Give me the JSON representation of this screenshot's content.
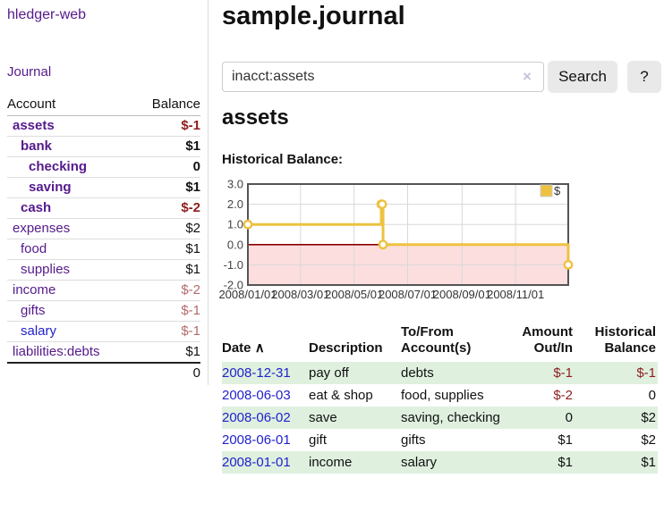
{
  "colors": {
    "visited_link_purple": "#551a8b",
    "unvisited_link_blue": "#2222cc",
    "negative_dark_red": "#8f1d1d",
    "negative_light_red": "#b36a6a",
    "row_shade_green": "#dff0df",
    "series_gold": "#edc240",
    "zero_line_red": "#8b0000",
    "negative_region_pink": "#fcdede",
    "grid_gray": "#d8d8d8",
    "plot_border_gray": "#545454",
    "button_gray": "#e9e9e9"
  },
  "sidebar": {
    "app_title": "hledger-web",
    "journal_link": "Journal",
    "accounts_table": {
      "headers": {
        "account": "Account",
        "balance": "Balance"
      },
      "rows": [
        {
          "name": "assets",
          "depth": 0,
          "bold": true,
          "balance": "$-1",
          "balance_style": "neg"
        },
        {
          "name": "bank",
          "depth": 1,
          "bold": true,
          "balance": "$1",
          "balance_style": "pos"
        },
        {
          "name": "checking",
          "depth": 2,
          "bold": true,
          "balance": "0",
          "balance_style": "pos"
        },
        {
          "name": "saving",
          "depth": 2,
          "bold": true,
          "balance": "$1",
          "balance_style": "pos"
        },
        {
          "name": "cash",
          "depth": 1,
          "bold": true,
          "balance": "$-2",
          "balance_style": "neg"
        },
        {
          "name": "expenses",
          "depth": 0,
          "bold": false,
          "balance": "$2",
          "balance_style": "pos"
        },
        {
          "name": "food",
          "depth": 1,
          "bold": false,
          "balance": "$1",
          "balance_style": "pos"
        },
        {
          "name": "supplies",
          "depth": 1,
          "bold": false,
          "balance": "$1",
          "balance_style": "pos"
        },
        {
          "name": "income",
          "depth": 0,
          "bold": false,
          "balance": "$-2",
          "balance_style": "neg-light"
        },
        {
          "name": "gifts",
          "depth": 1,
          "bold": false,
          "balance": "$-1",
          "balance_style": "neg-light"
        },
        {
          "name": "salary",
          "depth": 1,
          "bold": false,
          "balance": "$-1",
          "balance_style": "neg-light",
          "link_unvisited": true
        },
        {
          "name": "liabilities:debts",
          "depth": 0,
          "bold": false,
          "balance": "$1",
          "balance_style": "pos"
        }
      ],
      "total": "0"
    }
  },
  "main": {
    "title": "sample.journal",
    "search": {
      "value": "inacct:assets",
      "clear_icon": "×",
      "button_label": "Search",
      "help_label": "?"
    },
    "account_heading": "assets",
    "section_label": "Historical Balance:"
  },
  "chart_data": {
    "type": "line",
    "title": "Historical Balance:",
    "step": true,
    "x_range": [
      "2008-01-01",
      "2008-12-31"
    ],
    "y_range": [
      -2,
      3
    ],
    "y_ticks": [
      {
        "v": 3,
        "label": "3.0"
      },
      {
        "v": 2,
        "label": "2.0"
      },
      {
        "v": 1,
        "label": "1.0"
      },
      {
        "v": 0,
        "label": "0.0"
      },
      {
        "v": -1,
        "label": "-1.0"
      },
      {
        "v": -2,
        "label": "-2.0"
      }
    ],
    "x_ticks": [
      {
        "d": "2008-01-01",
        "label": "2008/01/01"
      },
      {
        "d": "2008-03-01",
        "label": "2008/03/01"
      },
      {
        "d": "2008-05-01",
        "label": "2008/05/01"
      },
      {
        "d": "2008-07-01",
        "label": "2008/07/01"
      },
      {
        "d": "2008-09-01",
        "label": "2008/09/01"
      },
      {
        "d": "2008-11-01",
        "label": "2008/11/01"
      }
    ],
    "series": [
      {
        "name": "$",
        "color": "#edc240",
        "points": [
          [
            "2008-01-01",
            1
          ],
          [
            "2008-06-01",
            2
          ],
          [
            "2008-06-02",
            2
          ],
          [
            "2008-06-03",
            0
          ],
          [
            "2008-12-31",
            -1
          ]
        ]
      }
    ],
    "legend": {
      "label": "$",
      "position": "top-right"
    },
    "markings": {
      "negative_region_fill": "#fcdede",
      "zero_line_color": "#8b0000"
    },
    "grid": true
  },
  "register_table": {
    "headers": {
      "date": "Date",
      "sort_icon": "∧",
      "description": "Description",
      "accounts": "To/From Account(s)",
      "amount": "Amount Out/In",
      "balance": "Historical Balance"
    },
    "rows": [
      {
        "date": "2008-12-31",
        "description": "pay off",
        "accounts": "debts",
        "amount": "$-1",
        "amount_style": "neg",
        "balance": "$-1",
        "balance_style": "neg"
      },
      {
        "date": "2008-06-03",
        "description": "eat & shop",
        "accounts": "food, supplies",
        "amount": "$-2",
        "amount_style": "neg",
        "balance": "0",
        "balance_style": "pos"
      },
      {
        "date": "2008-06-02",
        "description": "save",
        "accounts": "saving, checking",
        "amount": "0",
        "amount_style": "pos",
        "balance": "$2",
        "balance_style": "pos"
      },
      {
        "date": "2008-06-01",
        "description": "gift",
        "accounts": "gifts",
        "amount": "$1",
        "amount_style": "pos",
        "balance": "$2",
        "balance_style": "pos"
      },
      {
        "date": "2008-01-01",
        "description": "income",
        "accounts": "salary",
        "amount": "$1",
        "amount_style": "pos",
        "balance": "$1",
        "balance_style": "pos"
      }
    ]
  }
}
